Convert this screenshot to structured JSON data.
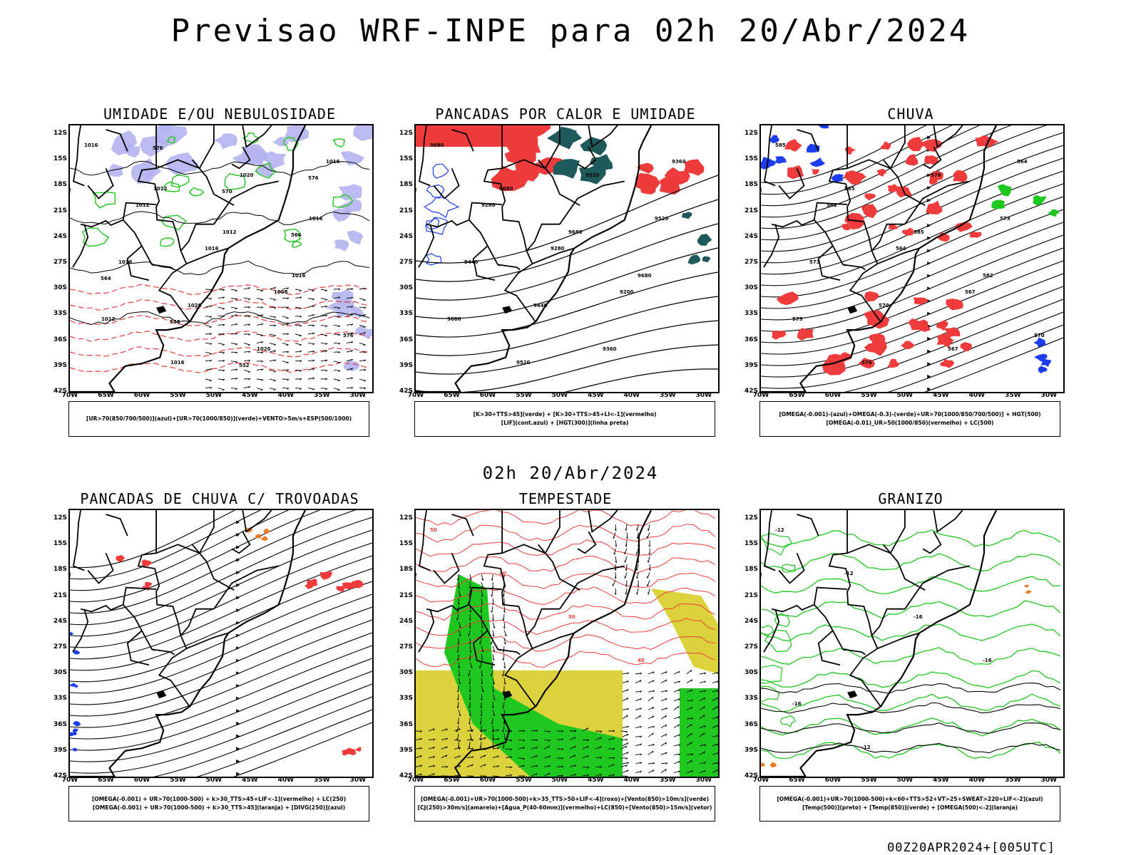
{
  "title": "Previsao WRF-INPE  para 02h 20/Abr/2024",
  "subtitle": "02h 20/Abr/2024",
  "footer": "00Z20APR2024+[005UTC]",
  "lat_ticks": [
    "12S",
    "15S",
    "18S",
    "21S",
    "24S",
    "27S",
    "30S",
    "33S",
    "36S",
    "39S",
    "42S"
  ],
  "lon_ticks": [
    "70W",
    "65W",
    "60W",
    "55W",
    "50W",
    "45W",
    "40W",
    "35W",
    "30W"
  ],
  "colors": {
    "red": "#ef3b3b",
    "green": "#1ec81e",
    "blue": "#1c3cf0",
    "lavender": "#b4b4f0",
    "teal": "#1e5a5a",
    "yellow": "#dcd23c",
    "orange": "#e87c1e"
  },
  "panels": [
    {
      "title": "UMIDADE E/OU NEBULOSIDADE",
      "legend": [
        "[UR>70(850/700/500)](azul)+[UR>70(1000/850)](verde)+VENTO>5m/s+ESP(500/1000)"
      ],
      "labels": [
        "1016",
        "1012",
        "1012",
        "1016",
        "1012",
        "1016",
        "1020",
        "1016",
        "1016",
        "1020",
        "1020",
        "1016",
        "1012",
        "1016",
        "1008",
        "576",
        "576",
        "570",
        "564",
        "564",
        "558",
        "552",
        "576"
      ]
    },
    {
      "title": "PANCADAS POR CALOR E UMIDADE",
      "legend": [
        "[K>30+TTS>45](verde) + [K>30+TTS>45+LI<-1](vermelho)",
        "[LIF](cont.azul) + [HGT(300)](linha preta)"
      ],
      "labels": [
        "9680",
        "9680",
        "9680",
        "9680",
        "9600",
        "9520",
        "9520",
        "9520",
        "9440",
        "9440",
        "9360",
        "9360",
        "9280",
        "9280",
        "9200"
      ]
    },
    {
      "title": "CHUVA",
      "legend": [
        "[OMEGA(-0.001)-(azul)+OMEGA(-0.3)-(verde)+UR>70(1000/850/700/500)] + HGT(500)",
        "[OMEGA(-0.01)_UR>50(1000/850)(vermelho) + LC(500)"
      ],
      "labels": [
        "585",
        "585",
        "585",
        "582",
        "579",
        "576",
        "576",
        "573",
        "573",
        "570",
        "567",
        "564",
        "561",
        "564",
        "567",
        "570"
      ]
    },
    {
      "title": "PANCADAS DE CHUVA C/ TROVOADAS",
      "legend": [
        "[OMEGA(-0.001) + UR>70(1000-500) + k>30_TTS>45+LIF<-1](vermelho) + LC(250)",
        "[OMEGA(-0.001) + UR>70(1000-500) + k>30_TTS>45](laranja) + [DIVG(250)](azul)"
      ],
      "labels": []
    },
    {
      "title": "TEMPESTADE",
      "legend": [
        "[OMEGA(-0.001)+UR>70(1000-500)+k>35_TTS>50+LIF<-4](roxo)+[Vento(850)>10m/s](verde)",
        "[CJ(250)>30m/s](amarelo)+[Agua_P(40-60mm)](vermelho)+LC(850)+[Vento(850)>15m/s](vetor)"
      ],
      "labels": [
        "50",
        "40",
        "50",
        "40"
      ]
    },
    {
      "title": "GRANIZO",
      "legend": [
        "[OMEGA(-0.001)+UR>70(1000-500)+k<60+TTS>52+VT>25+SWEAT>220+LIF<-2](azul)",
        "[Temp(500)](preto) + [Temp(850)](verde) + [OMEGA(500)<-2](laranja)"
      ],
      "labels": [
        "-12",
        "-12",
        "-16",
        "-16",
        "-16",
        "-12"
      ]
    }
  ]
}
